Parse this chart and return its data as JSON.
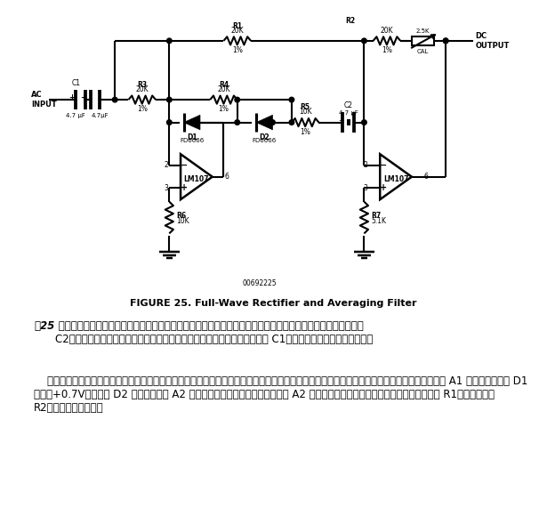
{
  "figure_title": "FIGURE 25. Full-Wave Rectifier and Averaging Filter",
  "code_label": "00692225",
  "bg_color": "#ffffff",
  "text_color": "#000000",
  "para1_prefix": "图25",
  "para1_rest": " 是一个平均值输出，有效值刻度的交流电压表头放大电路。它由一个整流器和一个平均值滤波器构成。如果去掉 C2，电路就不再具有平均值滤波功能，只是一个精密全波整流器，如果去掉 C1，电路就变成求绝对值的电路。",
  "para2": "    为了理解电路原理，下面将从信号路径入手，先分析输入电压小于零的情况，再分析输入电压大于零的情况。对于小于零的输入电压信号，放大器 A1 的输出被二极管 D1 算位至+0.7V，二极管 D2 将其与放大器 A2 的求和节点（反相端）隔离开。此时 A2 相当于一个简单的单位增益反相器，输入电阰是 R1，反馈电阰是 R2，输出电压大于零。",
  "lw": 1.5
}
